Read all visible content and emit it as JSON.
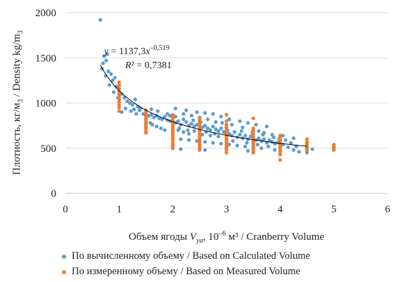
{
  "chart_data": {
    "type": "scatter",
    "xlabel": "Объем ягоды V_ya, 10⁻⁶ м³ / Cranberry Volume",
    "xlabel_parts": {
      "pre": "Объем ягоды ",
      "v": "V",
      "sub": "ya",
      "post": ", 10",
      "sup": "–6",
      "post2": " м³ / Cranberry Volume"
    },
    "ylabel": "Плотность, кг/м3 / Density kg/m3",
    "ylabel_parts": {
      "a": "Плотность, кг/м",
      "a_sub": "3",
      "b": " / Density kg/m",
      "b_sub": "3"
    },
    "xlim": [
      0,
      6
    ],
    "ylim": [
      0,
      2000
    ],
    "x_ticks": [
      "0",
      "1",
      "2",
      "3",
      "4",
      "5",
      "6"
    ],
    "y_ticks": [
      "0",
      "500",
      "1000",
      "1500",
      "2000"
    ],
    "grid": "horizontal",
    "legend_position": "bottom",
    "trendline": {
      "type": "power",
      "a": 1137.3,
      "b": -0.519,
      "x_range": [
        0.65,
        4.5
      ],
      "equation_parts": {
        "y": "y",
        "eq": " = 1137,3",
        "x": "x",
        "exp": "–0,519"
      },
      "r2_parts": {
        "r": "R",
        "eq": "² = 0,7381"
      }
    },
    "series": [
      {
        "name": "По вычисленному объему / Based on Calculated Volume",
        "color": "#5b9bd5",
        "points": [
          [
            0.65,
            1920
          ],
          [
            0.72,
            1520
          ],
          [
            0.78,
            1540
          ],
          [
            0.7,
            1440
          ],
          [
            0.76,
            1470
          ],
          [
            0.68,
            1380
          ],
          [
            0.8,
            1350
          ],
          [
            0.85,
            1320
          ],
          [
            0.75,
            1300
          ],
          [
            0.88,
            1250
          ],
          [
            0.92,
            1280
          ],
          [
            0.82,
            1200
          ],
          [
            0.95,
            1180
          ],
          [
            0.9,
            1120
          ],
          [
            1.05,
            1100
          ],
          [
            0.98,
            1060
          ],
          [
            1.1,
            1060
          ],
          [
            1.15,
            1020
          ],
          [
            1.2,
            1000
          ],
          [
            1.25,
            980
          ],
          [
            1.3,
            1040
          ],
          [
            1.35,
            960
          ],
          [
            1.4,
            940
          ],
          [
            1.05,
            900
          ],
          [
            1.12,
            940
          ],
          [
            1.22,
            910
          ],
          [
            1.28,
            930
          ],
          [
            1.32,
            880
          ],
          [
            1.38,
            920
          ],
          [
            1.45,
            880
          ],
          [
            1.5,
            900
          ],
          [
            1.55,
            860
          ],
          [
            1.6,
            870
          ],
          [
            1.65,
            840
          ],
          [
            1.7,
            860
          ],
          [
            1.75,
            830
          ],
          [
            1.8,
            820
          ],
          [
            1.85,
            850
          ],
          [
            1.9,
            810
          ],
          [
            1.95,
            800
          ],
          [
            1.58,
            780
          ],
          [
            1.62,
            760
          ],
          [
            1.7,
            740
          ],
          [
            1.78,
            720
          ],
          [
            1.85,
            700
          ],
          [
            1.6,
            930
          ],
          [
            1.72,
            910
          ],
          [
            1.9,
            880
          ],
          [
            2.05,
            780
          ],
          [
            2.1,
            800
          ],
          [
            2.15,
            760
          ],
          [
            2.2,
            820
          ],
          [
            2.25,
            790
          ],
          [
            2.3,
            750
          ],
          [
            2.35,
            770
          ],
          [
            2.4,
            740
          ],
          [
            2.45,
            760
          ],
          [
            2.55,
            730
          ],
          [
            2.6,
            750
          ],
          [
            2.65,
            720
          ],
          [
            2.7,
            700
          ],
          [
            2.75,
            740
          ],
          [
            2.8,
            710
          ],
          [
            2.85,
            690
          ],
          [
            2.9,
            720
          ],
          [
            2.95,
            680
          ],
          [
            2.1,
            700
          ],
          [
            2.2,
            680
          ],
          [
            2.3,
            660
          ],
          [
            2.4,
            690
          ],
          [
            2.55,
            650
          ],
          [
            2.7,
            640
          ],
          [
            2.85,
            630
          ],
          [
            3.05,
            660
          ],
          [
            3.1,
            640
          ],
          [
            3.15,
            680
          ],
          [
            3.2,
            620
          ],
          [
            3.25,
            650
          ],
          [
            3.3,
            610
          ],
          [
            3.35,
            640
          ],
          [
            3.4,
            600
          ],
          [
            3.45,
            630
          ],
          [
            3.55,
            590
          ],
          [
            3.6,
            610
          ],
          [
            3.65,
            580
          ],
          [
            3.7,
            600
          ],
          [
            3.75,
            560
          ],
          [
            3.8,
            590
          ],
          [
            3.85,
            570
          ],
          [
            3.9,
            550
          ],
          [
            3.95,
            560
          ],
          [
            2.2,
            880
          ],
          [
            2.35,
            860
          ],
          [
            2.5,
            840
          ],
          [
            2.65,
            820
          ],
          [
            2.8,
            790
          ],
          [
            3.1,
            760
          ],
          [
            3.3,
            730
          ],
          [
            3.5,
            700
          ],
          [
            3.6,
            690
          ],
          [
            3.7,
            670
          ],
          [
            3.85,
            650
          ],
          [
            2.15,
            600
          ],
          [
            2.3,
            590
          ],
          [
            2.45,
            580
          ],
          [
            2.6,
            570
          ],
          [
            2.75,
            560
          ],
          [
            2.9,
            550
          ],
          [
            3.05,
            540
          ],
          [
            3.2,
            530
          ],
          [
            3.35,
            520
          ],
          [
            3.5,
            510
          ],
          [
            3.65,
            500
          ],
          [
            2.05,
            940
          ],
          [
            2.25,
            920
          ],
          [
            2.45,
            900
          ],
          [
            2.6,
            890
          ],
          [
            2.75,
            880
          ],
          [
            2.9,
            850
          ],
          [
            3.05,
            820
          ],
          [
            3.25,
            800
          ],
          [
            3.4,
            780
          ],
          [
            3.55,
            760
          ],
          [
            3.75,
            740
          ],
          [
            4.05,
            540
          ],
          [
            4.15,
            510
          ],
          [
            4.25,
            480
          ],
          [
            4.35,
            460
          ],
          [
            4.5,
            450
          ],
          [
            4.6,
            490
          ],
          [
            4.1,
            590
          ],
          [
            4.2,
            560
          ],
          [
            4.3,
            520
          ],
          [
            4.05,
            640
          ],
          [
            4.25,
            610
          ],
          [
            2.15,
            490
          ],
          [
            2.6,
            480
          ],
          [
            3.4,
            470
          ],
          [
            3.9,
            480
          ],
          [
            1.95,
            860
          ],
          [
            2.05,
            850
          ],
          [
            2.12,
            720
          ],
          [
            2.28,
            700
          ],
          [
            2.38,
            810
          ],
          [
            2.52,
            790
          ],
          [
            2.62,
            680
          ],
          [
            2.78,
            660
          ],
          [
            2.92,
            780
          ],
          [
            3.02,
            700
          ],
          [
            3.12,
            580
          ],
          [
            3.28,
            690
          ],
          [
            3.38,
            560
          ],
          [
            3.48,
            670
          ],
          [
            3.58,
            540
          ],
          [
            3.68,
            650
          ],
          [
            3.78,
            520
          ],
          [
            3.88,
            620
          ],
          [
            3.98,
            600
          ]
        ]
      },
      {
        "name": "По измеренному объему / Based on Measured Volume",
        "color": "#ed7d31",
        "points": [
          [
            1.0,
            1230
          ],
          [
            1.0,
            1190
          ],
          [
            1.0,
            1160
          ],
          [
            1.0,
            1130
          ],
          [
            1.0,
            1100
          ],
          [
            1.0,
            1070
          ],
          [
            1.0,
            1040
          ],
          [
            1.0,
            1010
          ],
          [
            1.0,
            980
          ],
          [
            1.0,
            950
          ],
          [
            1.0,
            910
          ],
          [
            1.0,
            1200
          ],
          [
            1.5,
            920
          ],
          [
            1.5,
            890
          ],
          [
            1.5,
            860
          ],
          [
            1.5,
            840
          ],
          [
            1.5,
            820
          ],
          [
            1.5,
            800
          ],
          [
            1.5,
            780
          ],
          [
            1.5,
            760
          ],
          [
            1.5,
            740
          ],
          [
            1.5,
            720
          ],
          [
            1.5,
            690
          ],
          [
            1.5,
            670
          ],
          [
            2.0,
            870
          ],
          [
            2.0,
            840
          ],
          [
            2.0,
            810
          ],
          [
            2.0,
            790
          ],
          [
            2.0,
            770
          ],
          [
            2.0,
            750
          ],
          [
            2.0,
            730
          ],
          [
            2.0,
            710
          ],
          [
            2.0,
            690
          ],
          [
            2.0,
            670
          ],
          [
            2.0,
            650
          ],
          [
            2.0,
            630
          ],
          [
            2.0,
            610
          ],
          [
            2.0,
            590
          ],
          [
            2.0,
            560
          ],
          [
            2.0,
            540
          ],
          [
            2.0,
            520
          ],
          [
            2.0,
            500
          ],
          [
            2.5,
            830
          ],
          [
            2.5,
            800
          ],
          [
            2.5,
            780
          ],
          [
            2.5,
            760
          ],
          [
            2.5,
            740
          ],
          [
            2.5,
            720
          ],
          [
            2.5,
            700
          ],
          [
            2.5,
            680
          ],
          [
            2.5,
            660
          ],
          [
            2.5,
            640
          ],
          [
            2.5,
            620
          ],
          [
            2.5,
            600
          ],
          [
            2.5,
            580
          ],
          [
            2.5,
            560
          ],
          [
            2.5,
            540
          ],
          [
            2.5,
            520
          ],
          [
            2.5,
            500
          ],
          [
            2.5,
            480
          ],
          [
            3.0,
            870
          ],
          [
            3.0,
            800
          ],
          [
            3.0,
            760
          ],
          [
            3.0,
            730
          ],
          [
            3.0,
            700
          ],
          [
            3.0,
            680
          ],
          [
            3.0,
            660
          ],
          [
            3.0,
            640
          ],
          [
            3.0,
            620
          ],
          [
            3.0,
            600
          ],
          [
            3.0,
            580
          ],
          [
            3.0,
            560
          ],
          [
            3.0,
            540
          ],
          [
            3.0,
            520
          ],
          [
            3.0,
            500
          ],
          [
            3.0,
            480
          ],
          [
            3.0,
            450
          ],
          [
            3.5,
            830
          ],
          [
            3.5,
            720
          ],
          [
            3.5,
            680
          ],
          [
            3.5,
            650
          ],
          [
            3.5,
            630
          ],
          [
            3.5,
            610
          ],
          [
            3.5,
            590
          ],
          [
            3.5,
            570
          ],
          [
            3.5,
            550
          ],
          [
            3.5,
            530
          ],
          [
            3.5,
            510
          ],
          [
            3.5,
            490
          ],
          [
            3.5,
            470
          ],
          [
            3.5,
            450
          ],
          [
            4.0,
            640
          ],
          [
            4.0,
            620
          ],
          [
            4.0,
            600
          ],
          [
            4.0,
            580
          ],
          [
            4.0,
            560
          ],
          [
            4.0,
            540
          ],
          [
            4.0,
            520
          ],
          [
            4.0,
            500
          ],
          [
            4.0,
            480
          ],
          [
            4.0,
            460
          ],
          [
            4.0,
            430
          ],
          [
            4.0,
            370
          ],
          [
            4.5,
            600
          ],
          [
            4.5,
            570
          ],
          [
            4.5,
            550
          ],
          [
            4.5,
            530
          ],
          [
            4.5,
            510
          ],
          [
            4.5,
            490
          ],
          [
            4.5,
            470
          ],
          [
            5.0,
            540
          ],
          [
            5.0,
            525
          ],
          [
            5.0,
            510
          ],
          [
            5.0,
            495
          ],
          [
            5.0,
            480
          ]
        ]
      }
    ]
  }
}
